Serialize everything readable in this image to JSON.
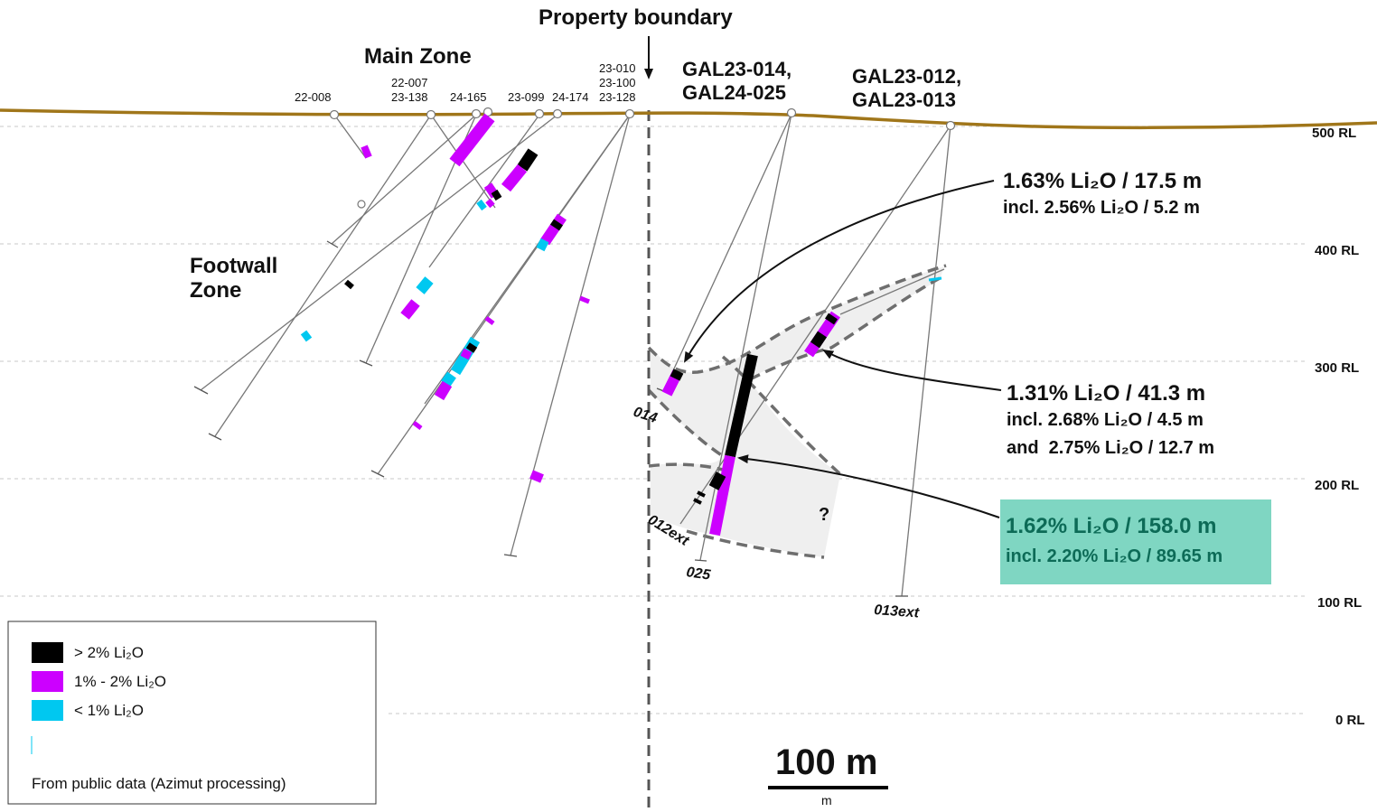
{
  "title": "Property boundary",
  "zones": {
    "main": "Main Zone",
    "footwall_1": "Footwall",
    "footwall_2": "Zone"
  },
  "rl_labels": [
    "500 RL",
    "400 RL",
    "300 RL",
    "200 RL",
    "100 RL",
    "0 RL"
  ],
  "collar_labels": {
    "h22_008": "22-008",
    "h22_007": "22-007",
    "h23_138": "23-138",
    "h24_165": "24-165",
    "h23_099": "23-099",
    "h24_174": "24-174",
    "h23_010": "23-010",
    "h23_100": "23-100",
    "h23_128": "23-128"
  },
  "headers": {
    "gal_014_a": "GAL23-014,",
    "gal_014_b": "GAL24-025",
    "gal_012_a": "GAL23-012,",
    "gal_012_b": "GAL23-013"
  },
  "hole_end_labels": {
    "h014": "014",
    "h012ext": "012ext",
    "h025": "025",
    "h013ext": "013ext"
  },
  "uncertain_mark": "?",
  "callouts": {
    "c1": {
      "line1": "1.63% Li₂O / 17.5 m",
      "line2": "incl. 2.56% Li₂O / 5.2 m"
    },
    "c2": {
      "line1": "1.31% Li₂O / 41.3 m",
      "line2": "incl. 2.68% Li₂O / 4.5 m",
      "line3": "and  2.75% Li₂O / 12.7 m"
    },
    "c3": {
      "line1": "1.62% Li₂O / 158.0 m",
      "line2": "incl. 2.20% Li₂O / 89.65 m"
    }
  },
  "legend": {
    "items": [
      {
        "label": "> 2% Li₂O",
        "color": "#000000"
      },
      {
        "label": "1% - 2% Li₂O",
        "color": "#cc00ff"
      },
      {
        "label": "< 1% Li₂O",
        "color": "#00c8f0"
      }
    ],
    "source": "From public data (Azimut processing)"
  },
  "scale": {
    "label": "100 m",
    "unit": "m"
  },
  "colors": {
    "topography": "#a0761a",
    "high_grade": "#000000",
    "mid_grade": "#cc00ff",
    "low_grade": "#00c8f0",
    "highlight_box": "#7fd6c2",
    "highlight_text": "#0d6b57",
    "zone_fill": "#efefef",
    "zone_outline": "#6e6e6e"
  }
}
